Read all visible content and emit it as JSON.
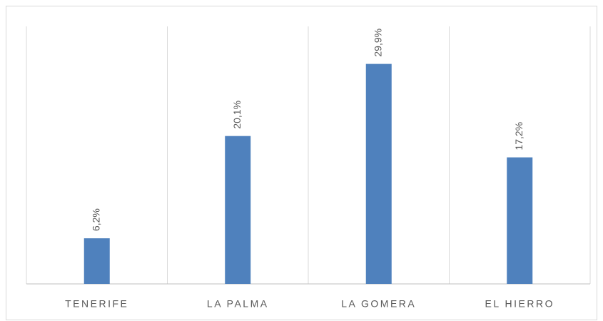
{
  "chart_data": {
    "type": "bar",
    "categories": [
      "TENERIFE",
      "LA PALMA",
      "LA GOMERA",
      "EL HIERRO"
    ],
    "values": [
      6.2,
      20.1,
      29.9,
      17.2
    ],
    "value_labels": [
      "6,2%",
      "20,1%",
      "29,9%",
      "17,2%"
    ],
    "color": "#4f81bd",
    "ylim": [
      0,
      35
    ]
  }
}
